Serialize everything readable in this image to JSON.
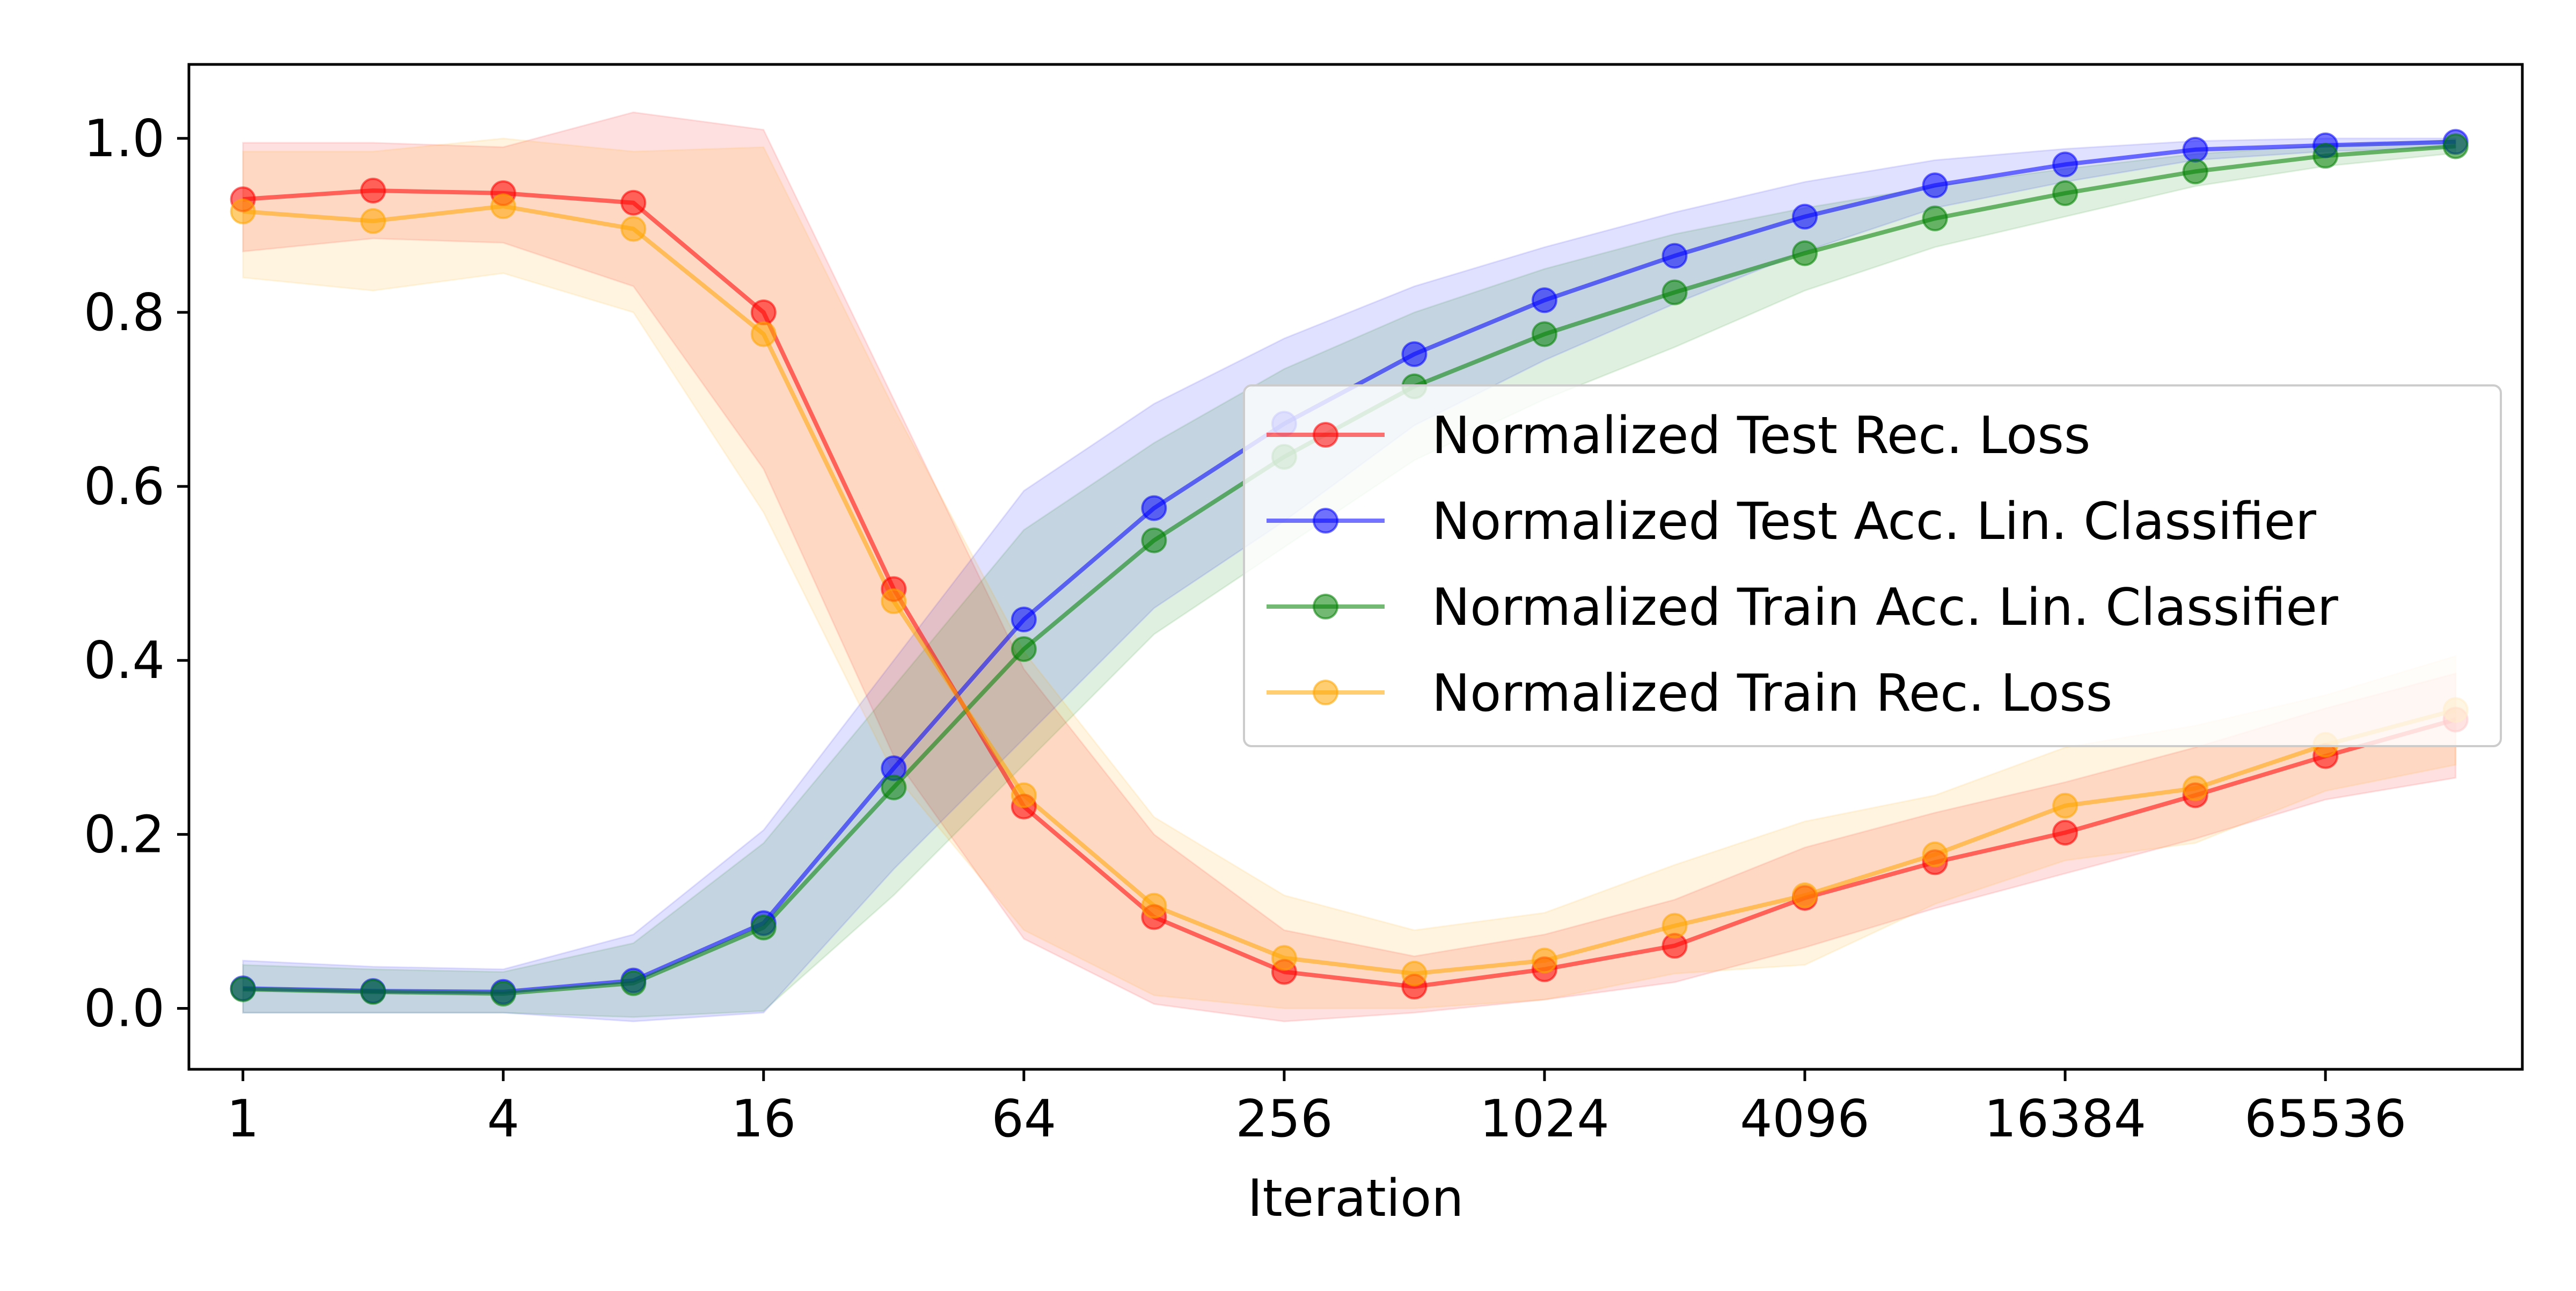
{
  "chart_data": {
    "type": "line",
    "title": "",
    "xlabel": "Iteration",
    "ylabel": "",
    "xscale": "log2",
    "xlim": [
      0.75,
      187000
    ],
    "ylim": [
      -0.07,
      1.085
    ],
    "x": [
      1,
      2,
      4,
      8,
      16,
      32,
      64,
      128,
      256,
      512,
      1024,
      2048,
      4096,
      8192,
      16384,
      32768,
      65536,
      131072
    ],
    "xticks": [
      1,
      4,
      16,
      64,
      256,
      1024,
      4096,
      16384,
      65536
    ],
    "xtick_labels": [
      "1",
      "4",
      "16",
      "64",
      "256",
      "1024",
      "4096",
      "16384",
      "65536"
    ],
    "yticks": [
      0.0,
      0.2,
      0.4,
      0.6,
      0.8,
      1.0
    ],
    "ytick_labels": [
      "0.0",
      "0.2",
      "0.4",
      "0.6",
      "0.8",
      "1.0"
    ],
    "legend_position": "center-right",
    "series": [
      {
        "name": "Normalized Test Rec. Loss",
        "color": "#ff0000",
        "values": [
          0.93,
          0.94,
          0.937,
          0.926,
          0.8,
          0.482,
          0.232,
          0.105,
          0.042,
          0.025,
          0.045,
          0.072,
          0.127,
          0.168,
          0.202,
          0.245,
          0.29,
          0.332
        ],
        "band_low": [
          0.87,
          0.885,
          0.88,
          0.83,
          0.62,
          0.29,
          0.08,
          0.005,
          -0.015,
          -0.005,
          0.01,
          0.03,
          0.07,
          0.115,
          0.155,
          0.195,
          0.24,
          0.265
        ],
        "band_high": [
          0.995,
          0.995,
          0.99,
          1.03,
          1.01,
          0.7,
          0.39,
          0.2,
          0.09,
          0.06,
          0.085,
          0.125,
          0.185,
          0.225,
          0.26,
          0.3,
          0.345,
          0.385
        ]
      },
      {
        "name": "Normalized Test Acc. Lin. Classifier",
        "color": "#0000ff",
        "values": [
          0.023,
          0.02,
          0.019,
          0.032,
          0.098,
          0.276,
          0.447,
          0.575,
          0.672,
          0.752,
          0.814,
          0.865,
          0.91,
          0.946,
          0.97,
          0.987,
          0.992,
          0.996
        ],
        "band_low": [
          -0.005,
          -0.005,
          -0.005,
          -0.015,
          -0.005,
          0.16,
          0.31,
          0.46,
          0.56,
          0.67,
          0.745,
          0.81,
          0.87,
          0.92,
          0.95,
          0.975,
          0.985,
          0.99
        ],
        "band_high": [
          0.055,
          0.048,
          0.045,
          0.085,
          0.205,
          0.4,
          0.595,
          0.695,
          0.77,
          0.83,
          0.875,
          0.915,
          0.95,
          0.975,
          0.988,
          0.997,
          1.0,
          1.0
        ]
      },
      {
        "name": "Normalized Train Acc. Lin. Classifier",
        "color": "#008000",
        "values": [
          0.022,
          0.019,
          0.017,
          0.029,
          0.093,
          0.254,
          0.413,
          0.538,
          0.634,
          0.715,
          0.775,
          0.823,
          0.868,
          0.908,
          0.937,
          0.962,
          0.98,
          0.991
        ],
        "band_low": [
          -0.005,
          -0.005,
          -0.005,
          -0.01,
          -0.003,
          0.13,
          0.28,
          0.43,
          0.53,
          0.63,
          0.7,
          0.76,
          0.825,
          0.875,
          0.91,
          0.945,
          0.968,
          0.983
        ],
        "band_high": [
          0.05,
          0.045,
          0.042,
          0.075,
          0.19,
          0.37,
          0.55,
          0.65,
          0.735,
          0.8,
          0.85,
          0.89,
          0.92,
          0.945,
          0.965,
          0.982,
          0.992,
          0.998
        ]
      },
      {
        "name": "Normalized Train Rec. Loss",
        "color": "#ffa500",
        "values": [
          0.916,
          0.905,
          0.922,
          0.896,
          0.775,
          0.468,
          0.245,
          0.118,
          0.058,
          0.04,
          0.055,
          0.095,
          0.13,
          0.177,
          0.233,
          0.253,
          0.303,
          0.343
        ],
        "band_low": [
          0.84,
          0.825,
          0.845,
          0.8,
          0.57,
          0.27,
          0.09,
          0.015,
          0.0,
          0.0,
          0.01,
          0.04,
          0.05,
          0.12,
          0.17,
          0.19,
          0.25,
          0.28
        ],
        "band_high": [
          0.985,
          0.985,
          1.0,
          0.985,
          0.99,
          0.69,
          0.41,
          0.22,
          0.13,
          0.09,
          0.11,
          0.165,
          0.215,
          0.245,
          0.3,
          0.325,
          0.36,
          0.405
        ]
      }
    ]
  }
}
